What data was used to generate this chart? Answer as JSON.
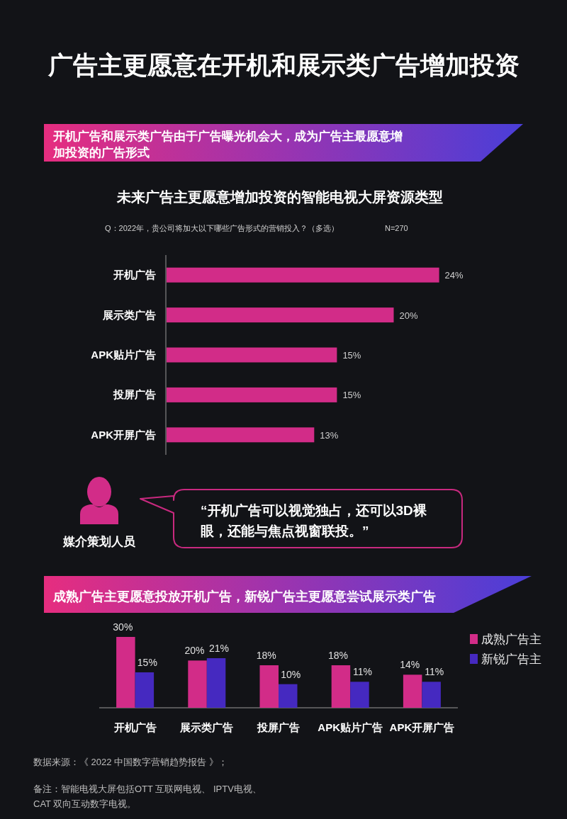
{
  "chart_data": [
    {
      "type": "other",
      "title": "广告主更愿意在开机和展示类广告增加投资",
      "annotations": [
        "开机广告和展示类广告由于广告曝光机会大，成为广告主最愿意增加投资的广告形式"
      ]
    },
    {
      "type": "bar",
      "orientation": "horizontal",
      "title": "未来广告主更愿意增加投资的智能电视大屏资源类型",
      "subtitle": "Q：2022年，贵公司将加大以下哪些广告形式的营销投入？（多选）",
      "annotations": [
        "N=270"
      ],
      "categories": [
        "开机广告",
        "展示类广告",
        "APK贴片广告",
        "投屏广告",
        "APK开屏广告"
      ],
      "values": [
        24,
        20,
        15,
        15,
        13
      ],
      "value_labels": [
        "24%",
        "20%",
        "15%",
        "15%",
        "13%"
      ],
      "color": "#d22c88"
    },
    {
      "type": "other",
      "annotations": [
        "媒介策划人员",
        "“开机广告可以视觉独占，还可以3D裸眼，还能与焦点视窗联投。”"
      ]
    },
    {
      "type": "bar",
      "title": "成熟广告主更愿意投放开机广告，新锐广告主更愿意尝试展示类广告",
      "categories": [
        "开机广告",
        "展示类广告",
        "投屏广告",
        "APK贴片广告",
        "APK开屏广告"
      ],
      "series": [
        {
          "name": "成熟广告主",
          "color": "#d22c88",
          "values": [
            30,
            20,
            18,
            18,
            14
          ],
          "value_labels": [
            "30%",
            "20%",
            "18%",
            "18%",
            "14%"
          ]
        },
        {
          "name": "新锐广告主",
          "color": "#4529c0",
          "values": [
            15,
            21,
            10,
            11,
            11
          ],
          "value_labels": [
            "15%",
            "21%",
            "10%",
            "11%",
            "11%"
          ]
        }
      ],
      "legend": "right",
      "annotations": [
        "数据来源：《 2022 中国数字营销趋势报告 》；",
        "备注：智能电视大屏包括OTT 互联网电视、 IPTV电视、 CAT 双向互动数字电视。"
      ]
    }
  ]
}
